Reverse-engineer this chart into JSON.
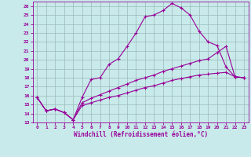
{
  "xlabel": "Windchill (Refroidissement éolien,°C)",
  "xlim": [
    -0.5,
    23.5
  ],
  "ylim": [
    13,
    26.5
  ],
  "xticks": [
    0,
    1,
    2,
    3,
    4,
    5,
    6,
    7,
    8,
    9,
    10,
    11,
    12,
    13,
    14,
    15,
    16,
    17,
    18,
    19,
    20,
    21,
    22,
    23
  ],
  "yticks": [
    13,
    14,
    15,
    16,
    17,
    18,
    19,
    20,
    21,
    22,
    23,
    24,
    25,
    26
  ],
  "background_color": "#c8eaea",
  "line_color": "#990099",
  "grid_color": "#9cb8b8",
  "line1_x": [
    0,
    1,
    2,
    3,
    4,
    5,
    6,
    7,
    8,
    9,
    10,
    11,
    12,
    13,
    14,
    15,
    16,
    17,
    18,
    19,
    20,
    21,
    22,
    23
  ],
  "line1_y": [
    15.8,
    14.3,
    14.5,
    14.1,
    13.3,
    15.8,
    17.8,
    18.0,
    19.5,
    20.1,
    21.5,
    23.0,
    24.8,
    25.0,
    25.5,
    26.3,
    25.8,
    25.0,
    23.2,
    22.0,
    21.6,
    19.2,
    18.1,
    18.0
  ],
  "line2_x": [
    0,
    1,
    2,
    3,
    4,
    5,
    6,
    7,
    8,
    9,
    10,
    11,
    12,
    13,
    14,
    15,
    16,
    17,
    18,
    19,
    20,
    21,
    22,
    23
  ],
  "line2_y": [
    15.8,
    14.3,
    14.5,
    14.1,
    13.3,
    15.2,
    15.7,
    16.1,
    16.5,
    16.9,
    17.3,
    17.7,
    18.0,
    18.3,
    18.7,
    19.0,
    19.3,
    19.6,
    19.9,
    20.1,
    20.8,
    21.5,
    18.1,
    18.0
  ],
  "line3_x": [
    0,
    1,
    2,
    3,
    4,
    5,
    6,
    7,
    8,
    9,
    10,
    11,
    12,
    13,
    14,
    15,
    16,
    17,
    18,
    19,
    20,
    21,
    22,
    23
  ],
  "line3_y": [
    15.8,
    14.3,
    14.5,
    14.1,
    13.3,
    14.9,
    15.2,
    15.5,
    15.8,
    16.0,
    16.3,
    16.6,
    16.9,
    17.1,
    17.4,
    17.7,
    17.9,
    18.1,
    18.3,
    18.4,
    18.5,
    18.6,
    18.1,
    18.0
  ],
  "marker": "+",
  "markersize": 3,
  "markeredgewidth": 0.8,
  "linewidth": 0.8,
  "tick_fontsize": 4.5,
  "label_fontsize": 5.5
}
